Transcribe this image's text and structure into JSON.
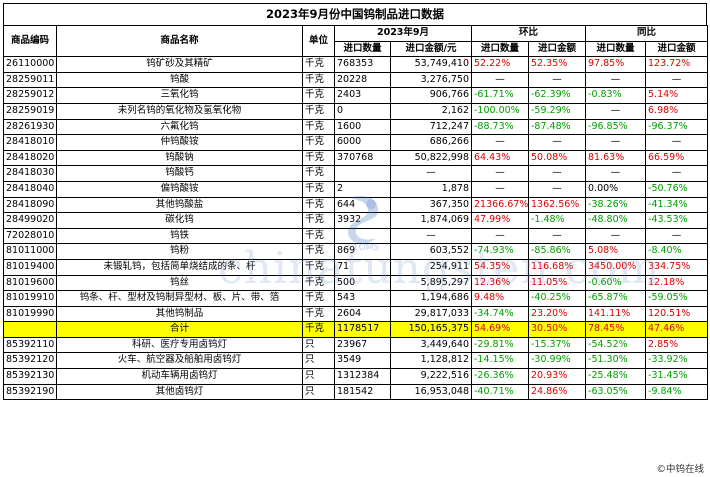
{
  "title": "2023年9月份中国钨制品进口数据",
  "headers": {
    "code": "商品编码",
    "name": "商品名称",
    "unit": "单位",
    "period": "2023年9月",
    "mom": "环比",
    "yoy": "同比",
    "qty": "进口数量",
    "amount": "进口金额/元",
    "pct_qty": "进口数量",
    "pct_amount": "进口金额"
  },
  "rows": [
    {
      "code": "26110000",
      "name": "钨矿砂及其精矿",
      "unit": "千克",
      "qty": "768353",
      "amount": "53,749,410",
      "mom_qty": "52.22%",
      "mom_amt": "52.35%",
      "yoy_qty": "97.85%",
      "yoy_amt": "123.72%",
      "c": [
        "red",
        "red",
        "red",
        "red"
      ]
    },
    {
      "code": "28259011",
      "name": "钨酸",
      "unit": "千克",
      "qty": "20228",
      "amount": "3,276,750",
      "mom_qty": "—",
      "mom_amt": "—",
      "yoy_qty": "—",
      "yoy_amt": "—",
      "c": [
        "black",
        "black",
        "black",
        "black"
      ]
    },
    {
      "code": "28259012",
      "name": "三氧化钨",
      "unit": "千克",
      "qty": "2403",
      "amount": "906,766",
      "mom_qty": "-61.71%",
      "mom_amt": "-62.39%",
      "yoy_qty": "-0.83%",
      "yoy_amt": "5.14%",
      "c": [
        "green",
        "green",
        "green",
        "red"
      ]
    },
    {
      "code": "28259019",
      "name": "未列名钨的氧化物及氢氧化物",
      "unit": "千克",
      "qty": "0",
      "amount": "2,162",
      "mom_qty": "-100.00%",
      "mom_amt": "-59.29%",
      "yoy_qty": "—",
      "yoy_amt": "6.98%",
      "c": [
        "green",
        "green",
        "black",
        "red"
      ]
    },
    {
      "code": "28261930",
      "name": "六氟化钨",
      "unit": "千克",
      "qty": "1600",
      "amount": "712,247",
      "mom_qty": "-88.73%",
      "mom_amt": "-87.48%",
      "yoy_qty": "-96.85%",
      "yoy_amt": "-96.37%",
      "c": [
        "green",
        "green",
        "green",
        "green"
      ]
    },
    {
      "code": "28418010",
      "name": "仲钨酸铵",
      "unit": "千克",
      "qty": "6000",
      "amount": "686,266",
      "mom_qty": "—",
      "mom_amt": "—",
      "yoy_qty": "—",
      "yoy_amt": "—",
      "c": [
        "black",
        "black",
        "black",
        "black"
      ]
    },
    {
      "code": "28418020",
      "name": "钨酸钠",
      "unit": "千克",
      "qty": "370768",
      "amount": "50,822,998",
      "mom_qty": "64.43%",
      "mom_amt": "50.08%",
      "yoy_qty": "81.63%",
      "yoy_amt": "66.59%",
      "c": [
        "red",
        "red",
        "red",
        "red"
      ]
    },
    {
      "code": "28418030",
      "name": "钨酸钙",
      "unit": "千克",
      "qty": "",
      "amount": "—",
      "mom_qty": "—",
      "mom_amt": "—",
      "yoy_qty": "—",
      "yoy_amt": "—",
      "c": [
        "black",
        "black",
        "black",
        "black"
      ]
    },
    {
      "code": "28418040",
      "name": "偏钨酸铵",
      "unit": "千克",
      "qty": "2",
      "amount": "1,878",
      "mom_qty": "—",
      "mom_amt": "—",
      "yoy_qty": "0.00%",
      "yoy_amt": "-50.76%",
      "c": [
        "black",
        "black",
        "black",
        "green"
      ]
    },
    {
      "code": "28418090",
      "name": "其他钨酸盐",
      "unit": "千克",
      "qty": "644",
      "amount": "367,350",
      "mom_qty": "21366.67%",
      "mom_amt": "1362.56%",
      "yoy_qty": "-38.26%",
      "yoy_amt": "-41.34%",
      "c": [
        "red",
        "red",
        "green",
        "green"
      ]
    },
    {
      "code": "28499020",
      "name": "碳化钨",
      "unit": "千克",
      "qty": "3932",
      "amount": "1,874,069",
      "mom_qty": "47.99%",
      "mom_amt": "-1.48%",
      "yoy_qty": "-48.80%",
      "yoy_amt": "-43.53%",
      "c": [
        "red",
        "green",
        "green",
        "green"
      ]
    },
    {
      "code": "72028010",
      "name": "钨铁",
      "unit": "千克",
      "qty": "",
      "amount": "—",
      "mom_qty": "—",
      "mom_amt": "—",
      "yoy_qty": "—",
      "yoy_amt": "—",
      "c": [
        "black",
        "black",
        "black",
        "black"
      ]
    },
    {
      "code": "81011000",
      "name": "钨粉",
      "unit": "千克",
      "qty": "869",
      "amount": "603,552",
      "mom_qty": "-74.93%",
      "mom_amt": "-85.86%",
      "yoy_qty": "5.08%",
      "yoy_amt": "-8.40%",
      "c": [
        "green",
        "green",
        "red",
        "green"
      ]
    },
    {
      "code": "81019400",
      "name": "未锻轧钨，包括简单烧结成的条、杆",
      "unit": "千克",
      "qty": "71",
      "amount": "254,911",
      "mom_qty": "54.35%",
      "mom_amt": "116.68%",
      "yoy_qty": "3450.00%",
      "yoy_amt": "334.75%",
      "c": [
        "red",
        "red",
        "red",
        "red"
      ]
    },
    {
      "code": "81019600",
      "name": "钨丝",
      "unit": "千克",
      "qty": "500",
      "amount": "5,895,297",
      "mom_qty": "12.36%",
      "mom_amt": "11.05%",
      "yoy_qty": "-0.60%",
      "yoy_amt": "12.18%",
      "c": [
        "red",
        "red",
        "green",
        "red"
      ]
    },
    {
      "code": "81019910",
      "name": "钨条、杆、型材及钨制异型材、板、片、带、箔",
      "unit": "千克",
      "qty": "543",
      "amount": "1,194,686",
      "mom_qty": "9.48%",
      "mom_amt": "-40.25%",
      "yoy_qty": "-65.87%",
      "yoy_amt": "-59.05%",
      "c": [
        "red",
        "green",
        "green",
        "green"
      ]
    },
    {
      "code": "81019990",
      "name": "其他钨制品",
      "unit": "千克",
      "qty": "2604",
      "amount": "29,817,033",
      "mom_qty": "-34.74%",
      "mom_amt": "23.20%",
      "yoy_qty": "141.11%",
      "yoy_amt": "120.51%",
      "c": [
        "green",
        "red",
        "red",
        "red"
      ]
    }
  ],
  "total": {
    "code": "",
    "name": "合计",
    "unit": "千克",
    "qty": "1178517",
    "amount": "150,165,375",
    "mom_qty": "54.69%",
    "mom_amt": "30.50%",
    "yoy_qty": "78.45%",
    "yoy_amt": "47.46%",
    "c": [
      "red",
      "red",
      "red",
      "red"
    ]
  },
  "lamp_rows": [
    {
      "code": "85392110",
      "name": "科研、医疗专用卤钨灯",
      "unit": "只",
      "qty": "23967",
      "amount": "3,449,640",
      "mom_qty": "-29.81%",
      "mom_amt": "-15.37%",
      "yoy_qty": "-54.52%",
      "yoy_amt": "2.85%",
      "c": [
        "green",
        "green",
        "green",
        "red"
      ]
    },
    {
      "code": "85392120",
      "name": "火车、航空器及船舶用卤钨灯",
      "unit": "只",
      "qty": "3549",
      "amount": "1,128,812",
      "mom_qty": "-14.15%",
      "mom_amt": "-30.99%",
      "yoy_qty": "-51.30%",
      "yoy_amt": "-33.92%",
      "c": [
        "green",
        "green",
        "green",
        "green"
      ]
    },
    {
      "code": "85392130",
      "name": "机动车辆用卤钨灯",
      "unit": "只",
      "qty": "1312384",
      "amount": "9,222,516",
      "mom_qty": "-26.36%",
      "mom_amt": "20.93%",
      "yoy_qty": "-25.48%",
      "yoy_amt": "-31.45%",
      "c": [
        "green",
        "red",
        "green",
        "green"
      ]
    },
    {
      "code": "85392190",
      "name": "其他卤钨灯",
      "unit": "只",
      "qty": "181542",
      "amount": "16,953,048",
      "mom_qty": "-40.71%",
      "mom_amt": "24.86%",
      "yoy_qty": "-63.05%",
      "yoy_amt": "-9.84%",
      "c": [
        "green",
        "red",
        "green",
        "green"
      ]
    }
  ],
  "watermark": "chinatungsten.com",
  "logo_text": "CTOMS",
  "corner_brand": "©中钨在线"
}
